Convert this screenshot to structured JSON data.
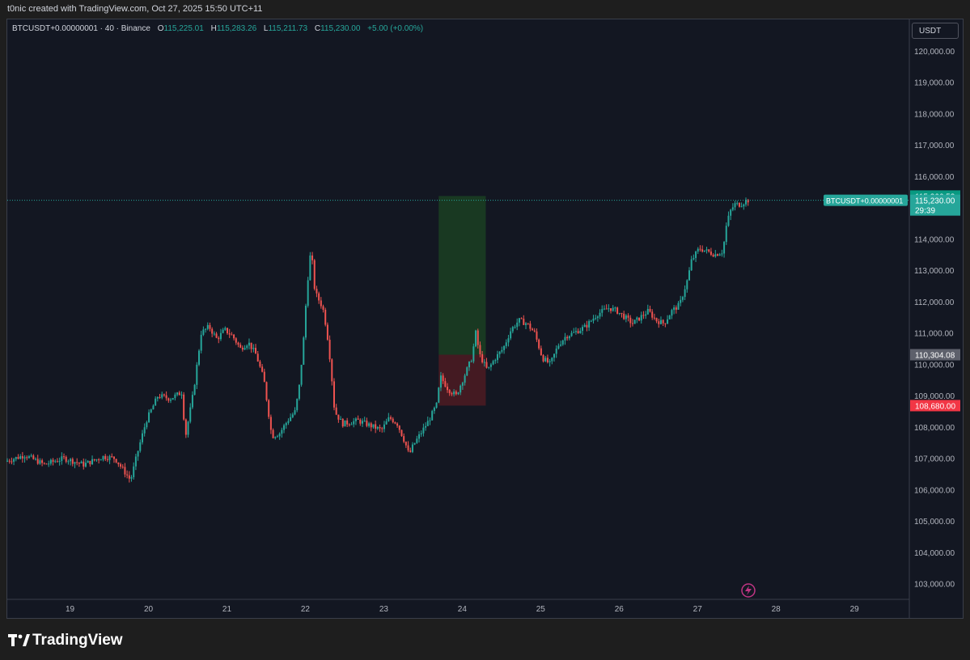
{
  "header": {
    "caption": "t0nic created with TradingView.com, Oct 27, 2025 15:50 UTC+11"
  },
  "legend": {
    "symbol": "BTCUSDT+0.00000001 · 40 · Binance",
    "open_key": "O",
    "open": "115,225.01",
    "high_key": "H",
    "high": "115,283.26",
    "low_key": "L",
    "low": "115,211.73",
    "close_key": "C",
    "close": "115,230.00",
    "change": "+5.00 (+0.00%)"
  },
  "currency_button": "USDT",
  "footer": {
    "brand": "TradingView"
  },
  "colors": {
    "up": "#26a69a",
    "down": "#ef5350",
    "bg": "#131722",
    "profit": "#1b3d22",
    "loss": "#4a1b22"
  },
  "chart_data": {
    "type": "candlestick",
    "symbol": "BTCUSDT+0.00000001",
    "interval": "40",
    "exchange": "Binance",
    "ylim": [
      102500,
      121000
    ],
    "yticks": [
      103000,
      104000,
      105000,
      106000,
      107000,
      108000,
      109000,
      110000,
      111000,
      112000,
      113000,
      114000,
      115000,
      116000,
      117000,
      118000,
      119000,
      120000
    ],
    "ytick_labels": [
      "103,000.00",
      "104,000.00",
      "105,000.00",
      "106,000.00",
      "107,000.00",
      "108,000.00",
      "109,000.00",
      "110,000.00",
      "111,000.00",
      "112,000.00",
      "113,000.00",
      "114,000.00",
      "115,000.00",
      "116,000.00",
      "117,000.00",
      "118,000.00",
      "119,000.00",
      "120,000.00"
    ],
    "xlim": [
      18.2,
      29.7
    ],
    "xticks": [
      19,
      20,
      21,
      22,
      23,
      24,
      25,
      26,
      27,
      28,
      29
    ],
    "xtick_labels": [
      "19",
      "20",
      "21",
      "22",
      "23",
      "24",
      "25",
      "26",
      "27",
      "28",
      "29"
    ],
    "price_path": [
      [
        18.2,
        106900
      ],
      [
        18.45,
        107100
      ],
      [
        18.7,
        106800
      ],
      [
        18.95,
        107000
      ],
      [
        19.2,
        106800
      ],
      [
        19.45,
        107050
      ],
      [
        19.6,
        107000
      ],
      [
        19.8,
        106300
      ],
      [
        19.9,
        107300
      ],
      [
        20.0,
        108200
      ],
      [
        20.15,
        109000
      ],
      [
        20.3,
        108900
      ],
      [
        20.45,
        109100
      ],
      [
        20.5,
        107700
      ],
      [
        20.6,
        109100
      ],
      [
        20.7,
        111000
      ],
      [
        20.8,
        111200
      ],
      [
        20.9,
        110800
      ],
      [
        21.0,
        111100
      ],
      [
        21.1,
        110900
      ],
      [
        21.2,
        110500
      ],
      [
        21.3,
        110700
      ],
      [
        21.4,
        110300
      ],
      [
        21.5,
        109500
      ],
      [
        21.6,
        107700
      ],
      [
        21.7,
        107800
      ],
      [
        21.8,
        108200
      ],
      [
        21.9,
        108500
      ],
      [
        21.95,
        109300
      ],
      [
        22.0,
        110600
      ],
      [
        22.05,
        112500
      ],
      [
        22.1,
        113700
      ],
      [
        22.15,
        112300
      ],
      [
        22.25,
        111800
      ],
      [
        22.3,
        111100
      ],
      [
        22.35,
        110000
      ],
      [
        22.4,
        108500
      ],
      [
        22.5,
        108100
      ],
      [
        22.7,
        108200
      ],
      [
        22.9,
        108000
      ],
      [
        23.0,
        107900
      ],
      [
        23.1,
        108300
      ],
      [
        23.2,
        108100
      ],
      [
        23.3,
        107500
      ],
      [
        23.35,
        107100
      ],
      [
        23.4,
        107400
      ],
      [
        23.5,
        107800
      ],
      [
        23.6,
        108200
      ],
      [
        23.7,
        108700
      ],
      [
        23.75,
        109600
      ],
      [
        23.85,
        109200
      ],
      [
        23.95,
        109000
      ],
      [
        24.05,
        109600
      ],
      [
        24.15,
        110200
      ],
      [
        24.2,
        111000
      ],
      [
        24.25,
        110300
      ],
      [
        24.35,
        109800
      ],
      [
        24.45,
        110200
      ],
      [
        24.55,
        110500
      ],
      [
        24.65,
        111100
      ],
      [
        24.75,
        111400
      ],
      [
        24.85,
        111300
      ],
      [
        24.95,
        111000
      ],
      [
        25.05,
        110200
      ],
      [
        25.15,
        110000
      ],
      [
        25.25,
        110600
      ],
      [
        25.35,
        110900
      ],
      [
        25.45,
        111000
      ],
      [
        25.6,
        111200
      ],
      [
        25.75,
        111600
      ],
      [
        25.9,
        111800
      ],
      [
        26.0,
        111700
      ],
      [
        26.1,
        111500
      ],
      [
        26.2,
        111300
      ],
      [
        26.3,
        111500
      ],
      [
        26.4,
        111700
      ],
      [
        26.5,
        111400
      ],
      [
        26.6,
        111300
      ],
      [
        26.7,
        111700
      ],
      [
        26.8,
        111900
      ],
      [
        26.9,
        112700
      ],
      [
        26.95,
        113300
      ],
      [
        27.05,
        113700
      ],
      [
        27.15,
        113600
      ],
      [
        27.25,
        113500
      ],
      [
        27.35,
        113600
      ],
      [
        27.4,
        114500
      ],
      [
        27.45,
        114900
      ],
      [
        27.5,
        115100
      ],
      [
        27.58,
        115100
      ],
      [
        27.65,
        115230
      ]
    ],
    "last_price_label": "115,230.00",
    "countdown": "29:39",
    "symbol_tag": "BTCUSDT+0.00000001",
    "position": {
      "type": "long",
      "x_start": 23.7,
      "x_end": 24.3,
      "entry": 110304.08,
      "target": 115366.53,
      "stop": 108680.0,
      "entry_label": "110,304.08",
      "target_label": "115,366.53",
      "stop_label": "108,680.00"
    }
  }
}
